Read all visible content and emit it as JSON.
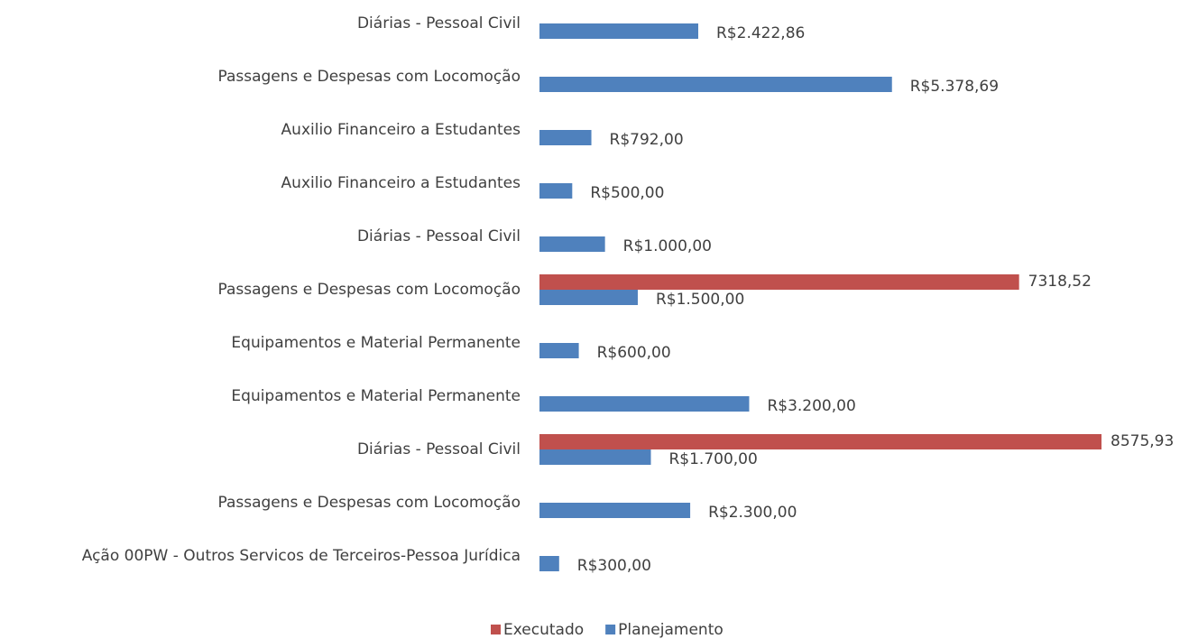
{
  "chart_data": {
    "type": "hbar",
    "categories": [
      "Diárias - Pessoal Civil",
      "Passagens e Despesas com Locomoção",
      "Auxilio Financeiro a Estudantes",
      "Auxilio Financeiro a Estudantes",
      "Diárias - Pessoal Civil",
      "Passagens e Despesas com Locomoção",
      "Equipamentos e Material Permanente",
      "Equipamentos e Material Permanente",
      "Diárias - Pessoal Civil",
      "Passagens e Despesas com Locomoção",
      "Ação 00PW - Outros Servicos de Terceiros-Pessoa Jurídica"
    ],
    "series": [
      {
        "name": "Executado",
        "color": "#c0504d",
        "values": [
          null,
          null,
          null,
          null,
          null,
          7318.52,
          null,
          null,
          8575.93,
          null,
          null
        ],
        "value_labels": [
          null,
          null,
          null,
          null,
          null,
          "7318,52",
          null,
          null,
          "8575,93",
          null,
          null
        ]
      },
      {
        "name": "Planejamento",
        "color": "#4f81bd",
        "values": [
          2422.86,
          5378.69,
          792,
          500,
          1000,
          1500,
          600,
          3200,
          1700,
          2300,
          300
        ],
        "value_labels": [
          "R$2.422,86",
          "R$5.378,69",
          "R$792,00",
          "R$500,00",
          "R$1.000,00",
          "R$1.500,00",
          "R$600,00",
          "R$3.200,00",
          "R$1.700,00",
          "R$2.300,00",
          "R$300,00"
        ]
      }
    ],
    "legend": "bottom"
  }
}
